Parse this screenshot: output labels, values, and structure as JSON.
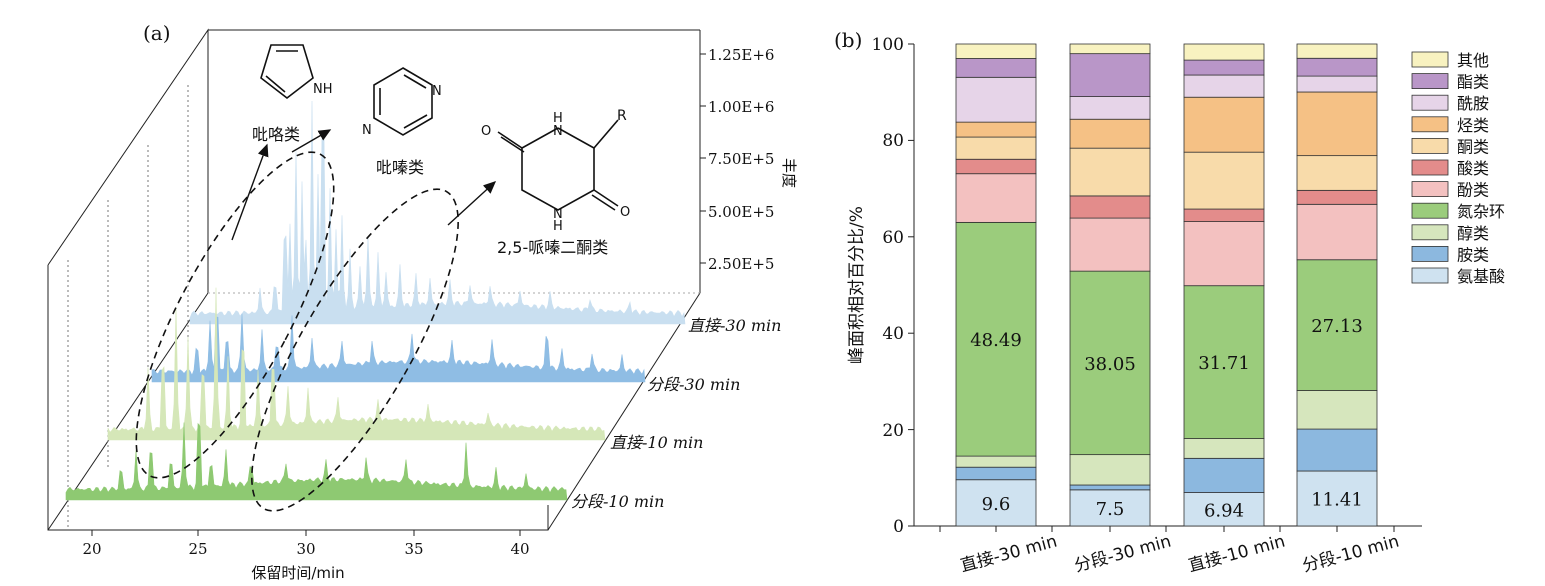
{
  "panel_a": {
    "label": "(a)",
    "xlabel": "保留时间/min",
    "zlabel": "丰度",
    "x_ticks": [
      "20",
      "25",
      "30",
      "35",
      "40"
    ],
    "z_ticks": [
      "1.25E+6",
      "1.00E+6",
      "7.50E+5",
      "5.00E+5",
      "2.50E+5"
    ],
    "traces": [
      {
        "name": "直接-30 min",
        "color": "#c9dff0"
      },
      {
        "name": "分段-30 min",
        "color": "#8fbde4"
      },
      {
        "name": "直接-10 min",
        "color": "#d5e7b8"
      },
      {
        "name": "分段-10 min",
        "color": "#8ec972"
      }
    ],
    "structures": [
      {
        "name": "吡咯类",
        "atom": "NH"
      },
      {
        "name": "吡嗪类",
        "atom1": "N",
        "atom2": "N"
      },
      {
        "name": "2,5-哌嗪二酮类",
        "H1": "H",
        "N1": "N",
        "R": "R",
        "O1": "O",
        "O2": "O",
        "N2": "N",
        "H2": "H"
      }
    ]
  },
  "chart_data": {
    "type": "bar",
    "label": "(b)",
    "stacked": true,
    "categories": [
      "直接-30 min",
      "分段-30 min",
      "直接-10 min",
      "分段-10 min"
    ],
    "ylabel": "峰面积相对百分比/%",
    "ylim": [
      0,
      100
    ],
    "yticks": [
      "0",
      "20",
      "40",
      "60",
      "80",
      "100"
    ],
    "legend_position": "right",
    "series": [
      {
        "name": "氨基酸",
        "color": "#cfe2f0",
        "values": [
          9.6,
          7.5,
          6.94,
          11.41
        ],
        "labels": [
          "9.6",
          "7.5",
          "6.94",
          "11.41"
        ]
      },
      {
        "name": "胺类",
        "color": "#8cb8df",
        "values": [
          2.6,
          1.0,
          7.1,
          8.7
        ]
      },
      {
        "name": "醇类",
        "color": "#d6e6bd",
        "values": [
          2.3,
          6.3,
          4.1,
          8.0
        ]
      },
      {
        "name": "氮杂环",
        "color": "#9bcc7c",
        "values": [
          48.49,
          38.05,
          31.71,
          27.13
        ],
        "labels": [
          "48.49",
          "38.05",
          "31.71",
          "27.13"
        ]
      },
      {
        "name": "酚类",
        "color": "#f3c1c0",
        "values": [
          10.1,
          11.0,
          13.3,
          11.5
        ]
      },
      {
        "name": "酸类",
        "color": "#e38c8b",
        "values": [
          3.0,
          4.6,
          2.6,
          2.9
        ]
      },
      {
        "name": "酮类",
        "color": "#f8dbaa",
        "values": [
          4.6,
          9.9,
          11.8,
          7.2
        ]
      },
      {
        "name": "烃类",
        "color": "#f5c185",
        "values": [
          3.1,
          6.0,
          11.4,
          13.2
        ]
      },
      {
        "name": "酰胺",
        "color": "#e6d4e8",
        "values": [
          9.3,
          4.7,
          4.6,
          3.3
        ]
      },
      {
        "name": "酯类",
        "color": "#b996c8",
        "values": [
          3.9,
          8.9,
          3.1,
          3.7
        ]
      },
      {
        "name": "其他",
        "color": "#f8f2c0",
        "values": [
          3.01,
          2.0,
          3.34,
          2.96
        ]
      }
    ]
  }
}
